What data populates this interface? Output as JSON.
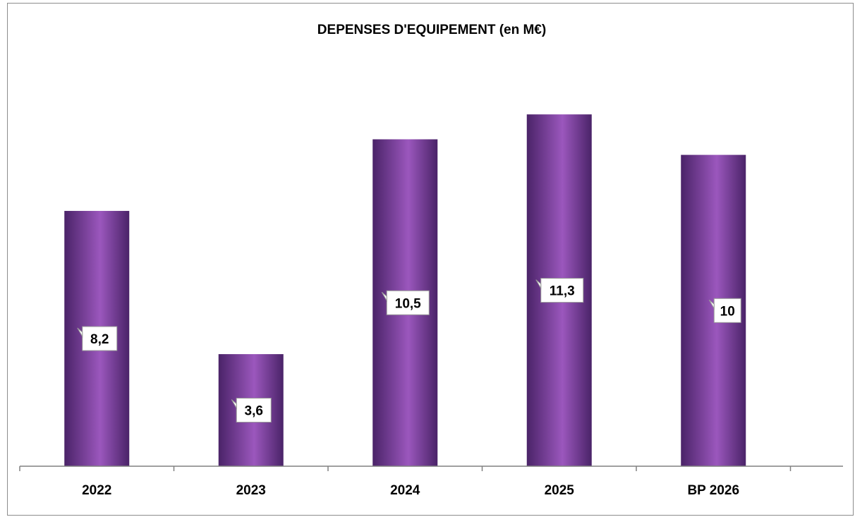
{
  "chart_data": {
    "type": "bar",
    "title": "DEPENSES D'EQUIPEMENT (en M€)",
    "xlabel": "",
    "ylabel": "",
    "categories": [
      "2022",
      "2023",
      "2024",
      "2025",
      "BP 2026"
    ],
    "values": [
      8.2,
      3.6,
      10.5,
      11.3,
      10
    ],
    "value_labels": [
      "8,2",
      "3,6",
      "10,5",
      "11,3",
      "10"
    ],
    "ylim": [
      0,
      14
    ],
    "grid": false,
    "legend": "none",
    "colors": {
      "bar_dark": "#4a2368",
      "bar_light": "#9b57bd",
      "axis": "#808080"
    }
  }
}
